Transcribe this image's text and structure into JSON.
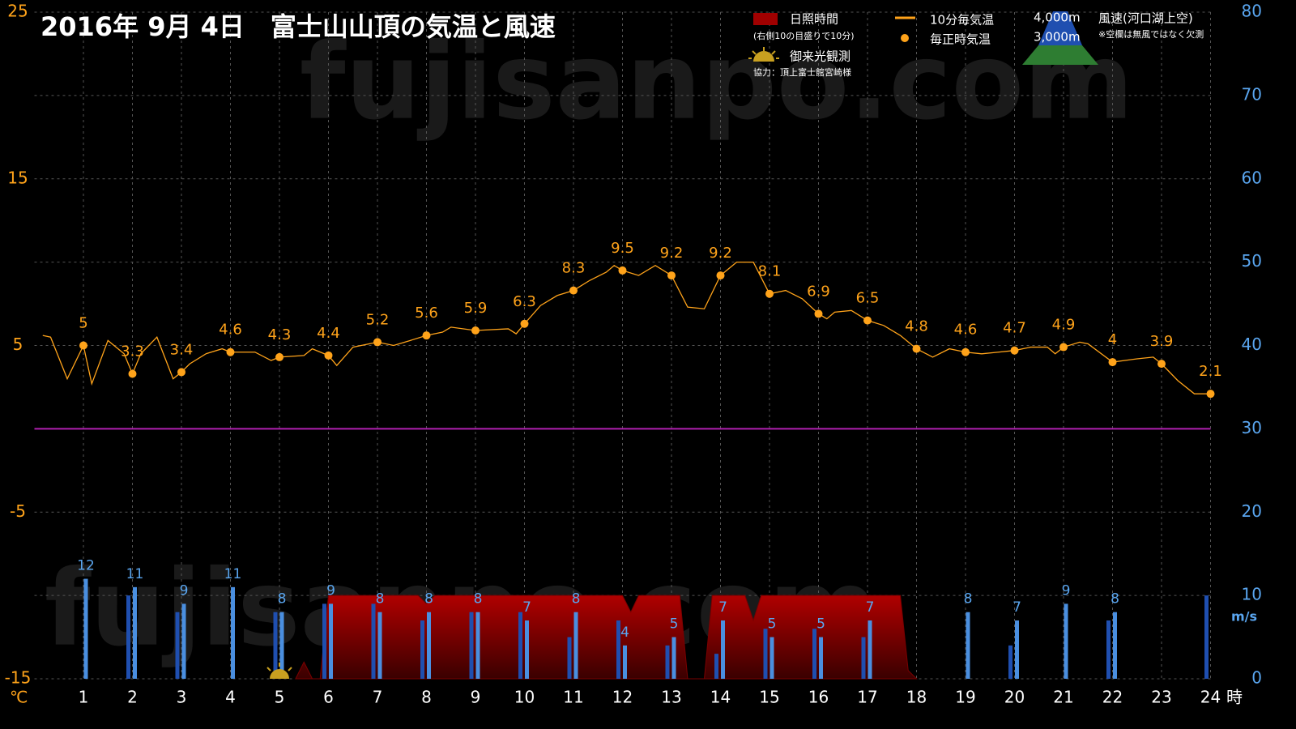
{
  "chart_data": {
    "type": "combo",
    "title": "2016年  9月  4日　富士山山頂の気温と風速",
    "watermark": "fujisanpo.com",
    "xlim": [
      0,
      24
    ],
    "xticks": [
      1,
      2,
      3,
      4,
      5,
      6,
      7,
      8,
      9,
      10,
      11,
      12,
      13,
      14,
      15,
      16,
      17,
      18,
      19,
      20,
      21,
      22,
      23,
      24
    ],
    "x_label": "時",
    "ylim": [
      -15,
      25
    ],
    "yticks": [
      -15,
      -5,
      5,
      15,
      25
    ],
    "y_label": "℃",
    "y2lim": [
      0,
      80
    ],
    "y2ticks": [
      0,
      10,
      20,
      30,
      40,
      50,
      60,
      70,
      80
    ],
    "y2_label": "m/s",
    "grid": true,
    "reference_line": {
      "value": 0,
      "color": "#b020b0"
    },
    "sunshine_note": "(右側10の目盛りで10分)",
    "sunrise": {
      "label": "御来光観測",
      "x": 5
    },
    "credit": "協力：頂上富士館宮崎様",
    "wind_legend_title": "風速(河口湖上空)",
    "wind_note": "※空欄は無風ではなく欠測",
    "series": [
      {
        "name": "10分毎気温",
        "kind": "line",
        "color": "#ffa31a",
        "x": [
          0.17,
          0.33,
          0.67,
          1.0,
          1.17,
          1.5,
          1.83,
          2.0,
          2.17,
          2.5,
          2.83,
          3.0,
          3.17,
          3.5,
          3.83,
          4.0,
          4.5,
          4.83,
          5.0,
          5.5,
          5.67,
          6.0,
          6.17,
          6.5,
          7.0,
          7.33,
          7.67,
          8.0,
          8.33,
          8.5,
          9.0,
          9.67,
          9.83,
          10.0,
          10.33,
          10.67,
          11.0,
          11.33,
          11.67,
          11.83,
          12.0,
          12.33,
          12.67,
          13.0,
          13.33,
          13.67,
          14.0,
          14.33,
          14.67,
          15.0,
          15.33,
          15.67,
          16.0,
          16.17,
          16.33,
          16.67,
          17.0,
          17.33,
          17.67,
          18.0,
          18.33,
          18.67,
          19.0,
          19.33,
          19.67,
          20.0,
          20.33,
          20.67,
          20.83,
          21.0,
          21.33,
          21.5,
          22.0,
          22.5,
          22.83,
          23.0,
          23.33,
          23.67,
          24.0
        ],
        "values": [
          5.6,
          5.5,
          3.0,
          5.0,
          2.7,
          5.3,
          4.5,
          3.3,
          4.5,
          5.5,
          3.0,
          3.4,
          3.9,
          4.5,
          4.8,
          4.6,
          4.6,
          4.1,
          4.3,
          4.4,
          4.8,
          4.4,
          3.8,
          4.9,
          5.2,
          5.0,
          5.3,
          5.6,
          5.8,
          6.1,
          5.9,
          6.0,
          5.7,
          6.3,
          7.4,
          8.0,
          8.3,
          8.9,
          9.4,
          9.8,
          9.5,
          9.2,
          9.8,
          9.2,
          7.3,
          7.2,
          9.2,
          10.0,
          10.0,
          8.1,
          8.3,
          7.8,
          6.9,
          6.6,
          7.0,
          7.1,
          6.5,
          6.2,
          5.6,
          4.8,
          4.3,
          4.8,
          4.6,
          4.5,
          4.6,
          4.7,
          4.9,
          4.9,
          4.5,
          4.9,
          5.2,
          5.1,
          4.0,
          4.2,
          4.3,
          3.9,
          2.9,
          2.1,
          2.1
        ]
      },
      {
        "name": "毎正時気温",
        "kind": "point",
        "color": "#ffa31a",
        "x": [
          1,
          2,
          3,
          4,
          5,
          6,
          7,
          8,
          9,
          10,
          11,
          12,
          13,
          14,
          15,
          16,
          17,
          18,
          19,
          20,
          21,
          22,
          23,
          24
        ],
        "values": [
          5,
          3.3,
          3.4,
          4.6,
          4.3,
          4.4,
          5.2,
          5.6,
          5.9,
          6.3,
          8.3,
          9.5,
          9.2,
          9.2,
          8.1,
          6.9,
          6.5,
          4.8,
          4.6,
          4.7,
          4.9,
          4,
          3.9,
          2.1
        ]
      },
      {
        "name": "日照時間",
        "kind": "area",
        "axis": "y2",
        "color": "#a00000",
        "x": [
          5.33,
          5.5,
          5.67,
          5.83,
          6.0,
          7.83,
          8.0,
          8.17,
          11.5,
          12.0,
          12.17,
          12.33,
          13.17,
          13.33,
          13.67,
          13.83,
          14.5,
          14.67,
          14.83,
          17.67,
          17.83,
          18.0
        ],
        "values": [
          0,
          2,
          0,
          0,
          10,
          10,
          9,
          10,
          10,
          10,
          8,
          10,
          10,
          0,
          0,
          10,
          10,
          7,
          10,
          10,
          1,
          0
        ]
      },
      {
        "name": "4,000m",
        "kind": "bar",
        "axis": "y2",
        "color": "#4a8fe0",
        "offset": 3,
        "x": [
          1,
          2,
          3,
          4,
          5,
          6,
          7,
          8,
          9,
          10,
          11,
          12,
          13,
          14,
          15,
          16,
          17,
          18,
          19,
          20,
          21,
          22,
          23,
          24
        ],
        "values": [
          12,
          11,
          9,
          11,
          8,
          9,
          8,
          8,
          8,
          7,
          8,
          4,
          5,
          7,
          5,
          5,
          7,
          null,
          8,
          7,
          9,
          8,
          null,
          null
        ]
      },
      {
        "name": "3,000m",
        "kind": "bar",
        "axis": "y2",
        "color": "#1f4fb0",
        "offset": -5,
        "x": [
          1,
          2,
          3,
          4,
          5,
          6,
          7,
          8,
          9,
          10,
          11,
          12,
          13,
          14,
          15,
          16,
          17,
          18,
          19,
          20,
          21,
          22,
          23,
          24
        ],
        "values": [
          null,
          10,
          8,
          null,
          8,
          9,
          9,
          7,
          8,
          8,
          5,
          7,
          4,
          3,
          6,
          6,
          5,
          null,
          null,
          4,
          null,
          7,
          null,
          10
        ]
      }
    ]
  }
}
